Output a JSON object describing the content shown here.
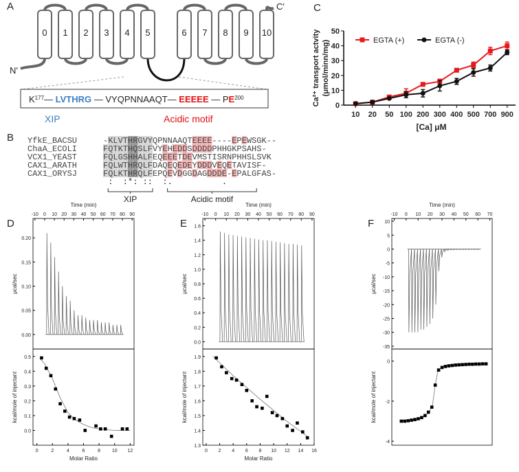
{
  "panel_labels": [
    "A",
    "B",
    "C",
    "D",
    "E",
    "F"
  ],
  "topology": {
    "helices": [
      "0",
      "1",
      "2",
      "3",
      "4",
      "5",
      "6",
      "7",
      "8",
      "9",
      "10"
    ],
    "n_terminus": "N′",
    "c_terminus": "C′",
    "sequence": [
      {
        "text": "K",
        "style": "plain"
      },
      {
        "text": "177",
        "style": "sup"
      },
      {
        "text": "— ",
        "style": "plain"
      },
      {
        "text": "LVTHRG",
        "style": "xip"
      },
      {
        "text": " — VYQPNNAAQT— ",
        "style": "plain"
      },
      {
        "text": "EEEEE",
        "style": "acidic"
      },
      {
        "text": " — P",
        "style": "plain"
      },
      {
        "text": "E",
        "style": "acidic"
      },
      {
        "text": "200",
        "style": "sup"
      }
    ],
    "xip_label": "XIP",
    "acidic_label": "Acidic motif"
  },
  "alignment": {
    "names": [
      "YfkE_BACSU",
      "ChaA_ECOLI",
      "VCX1_YEAST",
      "CAX1_ARATH",
      "CAX1_ORYSJ"
    ],
    "sequences": [
      "-KLVTHRGVYQPNNAAQTEEEE----EPEWSGK--",
      "FQTKTHQSLFVYEHEDDSDDDDPHHGKPSAHS-",
      "FQLGSHHALFEQEEETDEVMSTISRNPHHSLSVK",
      "FQLWTHRQLFDAQEQEDEYDDDVEQETAVISF-",
      "FQLKTHRQLFEPQEVDGGDAGDDDE-EPALGFAS-"
    ],
    "conservation": " :  :*: ::  :.          .",
    "xip_label": "XIP",
    "acidic_label": "Acidic motif"
  },
  "chart_data": [
    {
      "type": "line",
      "ylabel": [
        "Ca²⁺ transport actvity",
        "(μmol/minn/mg)"
      ],
      "xlabel": "[Ca] μM",
      "categories": [
        "10",
        "20",
        "50",
        "100",
        "200",
        "300",
        "400",
        "500",
        "700",
        "900"
      ],
      "ylim": [
        0,
        50
      ],
      "yticks": [
        0,
        10,
        20,
        30,
        40,
        50
      ],
      "legend": "top-left",
      "series": [
        {
          "name": "EGTA (+)",
          "color": "#e41a1c",
          "marker": "square",
          "values": [
            1,
            2,
            5.5,
            8,
            14,
            16,
            23.5,
            27,
            36.5,
            40
          ],
          "errors": [
            0.5,
            0.5,
            0.8,
            3,
            1,
            1.5,
            1,
            2,
            2.5,
            2.5
          ]
        },
        {
          "name": "EGTA (-)",
          "color": "#111111",
          "marker": "circle",
          "values": [
            1,
            2,
            4.5,
            7,
            8,
            13,
            16,
            22,
            25,
            35.5
          ],
          "errors": [
            0.5,
            0.5,
            0.5,
            2,
            2.5,
            3.5,
            2,
            2.5,
            2,
            1.5
          ]
        }
      ]
    },
    {
      "type": "thermogram",
      "xlabel": "Time (min)",
      "ylabel": "μcal/sec",
      "color": "#555555",
      "xlim": [
        -12,
        92
      ],
      "xticks": [
        -10,
        0,
        10,
        20,
        30,
        40,
        50,
        60,
        70,
        80,
        90
      ],
      "ylim": [
        -0.03,
        0.24
      ],
      "yticks": [
        {
          "value": 0,
          "label": "0.00"
        },
        0.05,
        {
          "value": 0.1,
          "label": "0.10"
        },
        0.15,
        {
          "value": 0.2,
          "label": "0.20"
        }
      ],
      "x": [
        2,
        6,
        10,
        14,
        18,
        22,
        26,
        30,
        34,
        38,
        42,
        46,
        50,
        54,
        58,
        62,
        66,
        70,
        74,
        78
      ],
      "values": [
        0.21,
        0.19,
        0.16,
        0.13,
        0.1,
        0.08,
        0.07,
        0.05,
        0.04,
        0.04,
        0.035,
        0.03,
        0.03,
        0.03,
        0.025,
        0.025,
        0.025,
        0.02,
        0.02,
        0.02
      ]
    },
    {
      "type": "scatter",
      "xlabel": "Molar Ratio",
      "ylabel": "kcal/mole of injectant",
      "color": "#000000",
      "xlim": [
        -0.5,
        12.5
      ],
      "xticks": [
        0,
        2,
        4,
        6,
        8,
        10,
        12
      ],
      "ylim": [
        -0.1,
        0.55
      ],
      "yticks": [
        {
          "value": 0,
          "label": "0.0"
        },
        0.1,
        0.2,
        0.3,
        0.4,
        0.5
      ],
      "x": [
        0.6,
        1.2,
        1.8,
        2.4,
        3.0,
        3.6,
        4.2,
        4.8,
        5.5,
        6.2,
        7.6,
        8.2,
        8.8,
        9.6,
        11.0,
        11.6
      ],
      "values": [
        0.49,
        0.42,
        0.37,
        0.28,
        0.18,
        0.13,
        0.09,
        0.08,
        0.07,
        0.0,
        0.03,
        0.01,
        0.01,
        -0.04,
        0.01,
        0.01
      ],
      "fit": {
        "x": [
          0.5,
          1,
          2,
          3,
          4,
          5,
          6,
          7,
          8,
          10,
          12
        ],
        "values": [
          0.48,
          0.45,
          0.35,
          0.22,
          0.12,
          0.07,
          0.04,
          0.02,
          0.01,
          0.0,
          0.0
        ]
      }
    },
    {
      "type": "thermogram",
      "xlabel": "Time (min)",
      "ylabel": "μcal/sec",
      "color": "#555555",
      "xlim": [
        -12,
        92
      ],
      "xticks": [
        -10,
        0,
        10,
        20,
        30,
        40,
        50,
        60,
        70,
        80,
        90
      ],
      "ylim": [
        -0.1,
        1.7
      ],
      "yticks": [
        {
          "value": 0,
          "label": "0.0"
        },
        0.2,
        0.4,
        0.6,
        0.8,
        {
          "value": 1,
          "label": "1.0"
        },
        1.2,
        1.4,
        1.6
      ],
      "x": [
        4,
        8,
        12,
        16,
        20,
        24,
        28,
        32,
        36,
        40,
        44,
        48,
        52,
        56,
        60,
        64,
        68,
        72,
        76,
        80
      ],
      "values": [
        1.52,
        1.5,
        1.48,
        1.47,
        1.46,
        1.45,
        1.44,
        1.43,
        1.42,
        1.41,
        1.4,
        1.4,
        1.39,
        1.38,
        1.37,
        1.36,
        1.35,
        1.35,
        1.34,
        1.33
      ]
    },
    {
      "type": "scatter",
      "xlabel": "Molar Ratio",
      "ylabel": "kcal/mole of injectant",
      "color": "#000000",
      "xlim": [
        -0.5,
        16
      ],
      "xticks": [
        0,
        2,
        4,
        6,
        8,
        10,
        12,
        14,
        16
      ],
      "ylim": [
        1.3,
        1.95
      ],
      "yticks": [
        1.3,
        1.4,
        1.5,
        1.6,
        1.7,
        1.8,
        1.9
      ],
      "x": [
        1.5,
        2.3,
        3.0,
        3.8,
        4.5,
        5.3,
        6.0,
        6.8,
        7.5,
        8.3,
        9.0,
        9.8,
        10.5,
        11.3,
        12.0,
        12.8,
        13.5,
        14.3,
        15.0
      ],
      "values": [
        1.89,
        1.83,
        1.79,
        1.75,
        1.74,
        1.71,
        1.67,
        1.6,
        1.56,
        1.55,
        1.63,
        1.52,
        1.5,
        1.48,
        1.43,
        1.4,
        1.45,
        1.39,
        1.35
      ],
      "fit": {
        "x": [
          1,
          4,
          8,
          12,
          15
        ],
        "values": [
          1.9,
          1.77,
          1.61,
          1.46,
          1.36
        ]
      }
    },
    {
      "type": "thermogram",
      "xlabel": "Time (min)",
      "ylabel": "μcal/sec",
      "color": "#555555",
      "xlim": [
        -12,
        72
      ],
      "xticks": [
        -10,
        0,
        10,
        20,
        30,
        40,
        50,
        60,
        70
      ],
      "ylim": [
        -36,
        11
      ],
      "yticks": [
        -35,
        -30,
        -25,
        -20,
        -15,
        -10,
        -5,
        0,
        5,
        10
      ],
      "x": [
        2,
        4.5,
        7,
        9.5,
        12,
        14.5,
        17,
        19.5,
        22,
        24.5,
        27,
        29.5,
        32,
        34.5,
        37,
        39.5,
        42,
        44.5,
        47,
        49.5,
        52,
        54.5,
        57,
        59.5
      ],
      "values": [
        -30,
        -30,
        -30,
        -30,
        -29,
        -29,
        -28,
        -27,
        -25,
        -20,
        -8,
        -3,
        -1,
        -0.5,
        -0.3,
        -0.3,
        -0.2,
        -0.2,
        -0.2,
        -0.2,
        -0.2,
        -0.2,
        -0.2,
        -0.2
      ]
    },
    {
      "type": "scatter",
      "ylabel": "kcal/mole of injectant",
      "color": "#000000",
      "xlim": [
        -2,
        72
      ],
      "ylim": [
        -4.2,
        0.6
      ],
      "yticks": [
        -4,
        -2,
        0
      ],
      "x": [
        5,
        7.5,
        10,
        12.5,
        15,
        17.5,
        20,
        22.5,
        25,
        27.5,
        30,
        32.5,
        35,
        37.5,
        40,
        42.5,
        45,
        47.5,
        50,
        52.5,
        55,
        57.5,
        60,
        62.5,
        65,
        67.5
      ],
      "values": [
        -3.0,
        -3.0,
        -2.98,
        -2.95,
        -2.92,
        -2.88,
        -2.82,
        -2.72,
        -2.55,
        -2.3,
        -1.2,
        -0.45,
        -0.32,
        -0.27,
        -0.24,
        -0.22,
        -0.2,
        -0.19,
        -0.18,
        -0.17,
        -0.16,
        -0.16,
        -0.15,
        -0.15,
        -0.14,
        -0.14
      ],
      "fit": {
        "x": [
          5,
          20,
          25,
          28,
          30,
          32,
          35,
          45,
          68
        ],
        "values": [
          -3,
          -2.85,
          -2.6,
          -2.2,
          -1.2,
          -0.5,
          -0.3,
          -0.2,
          -0.14
        ]
      }
    }
  ]
}
